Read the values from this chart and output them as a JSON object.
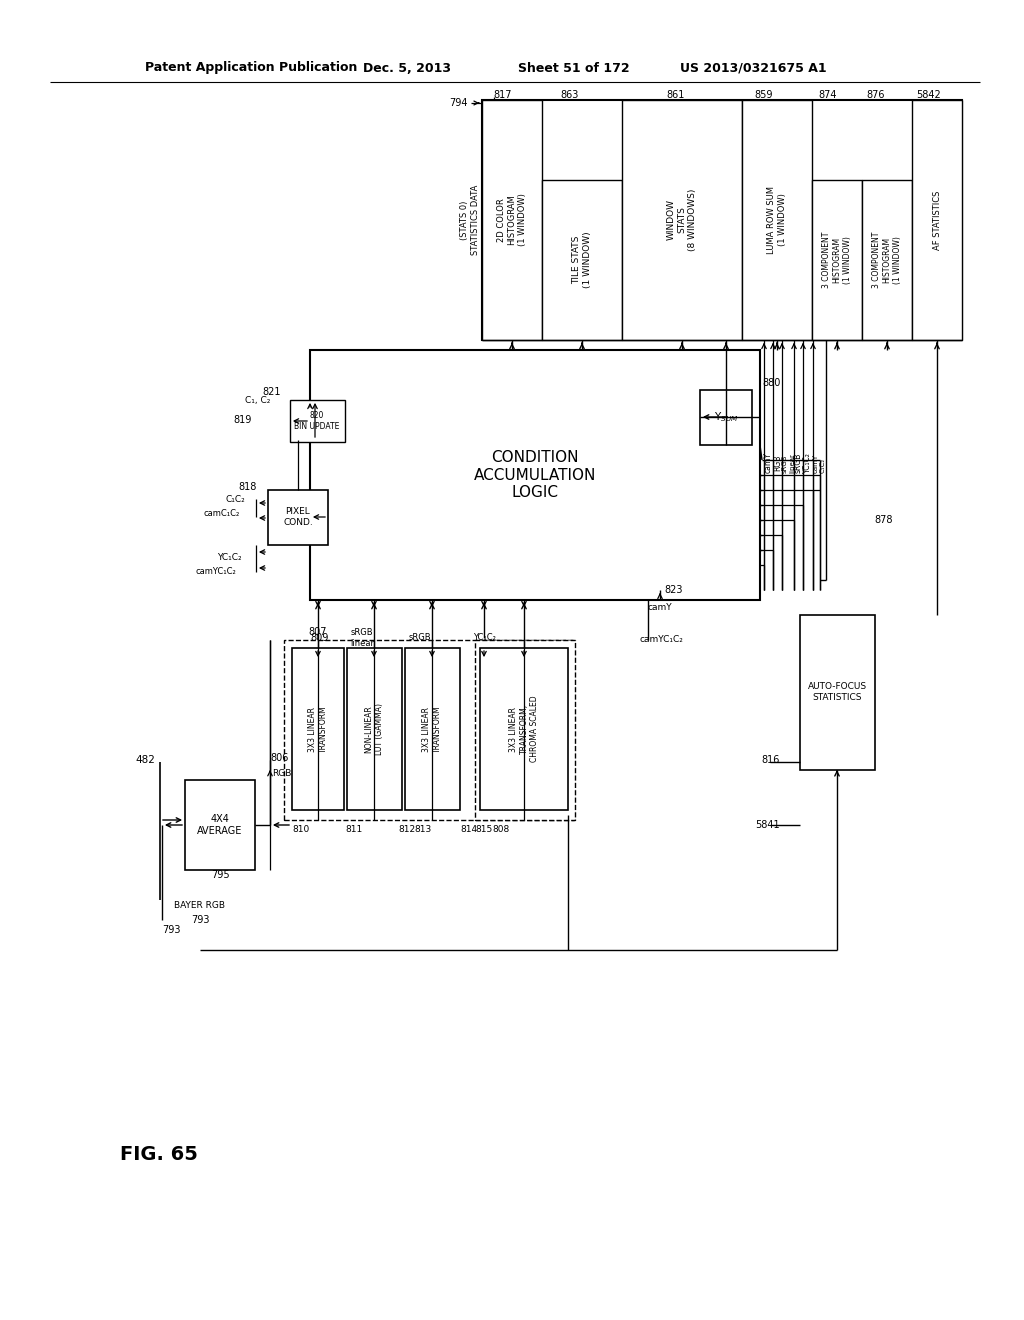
{
  "title_left": "Patent Application Publication",
  "title_mid": "Dec. 5, 2013",
  "title_right_1": "Sheet 51 of 172",
  "title_right_2": "US 2013/0321675 A1",
  "fig_label": "FIG. 65",
  "background_color": "#ffffff",
  "line_color": "#000000",
  "text_color": "#000000"
}
